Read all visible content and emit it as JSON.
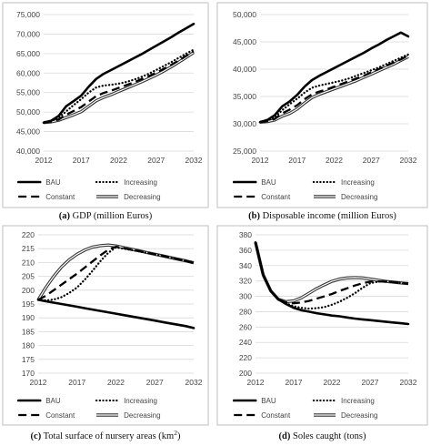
{
  "legend_labels": [
    "BAU",
    "Increasing",
    "Constant",
    "Decreasing"
  ],
  "chart_data": [
    {
      "type": "line",
      "panel": "a",
      "caption_letter": "(a)",
      "caption_text": " GDP (million Euros)",
      "x": [
        2012,
        2013,
        2014,
        2015,
        2016,
        2017,
        2018,
        2019,
        2020,
        2021,
        2022,
        2023,
        2024,
        2025,
        2026,
        2027,
        2028,
        2029,
        2030,
        2031,
        2032
      ],
      "xticks": [
        "2012",
        "2017",
        "2022",
        "2027",
        "2032"
      ],
      "yticks": [
        "40,000",
        "45,000",
        "50,000",
        "55,000",
        "60,000",
        "65,000",
        "70,000",
        "75,000"
      ],
      "ylim": [
        40000,
        75000
      ],
      "grid": true,
      "legend_position": "bottom",
      "series": [
        {
          "name": "BAU",
          "style": "solid",
          "values": [
            47300,
            47800,
            49000,
            51500,
            52800,
            54200,
            56500,
            58500,
            59800,
            60800,
            61800,
            62800,
            63800,
            64800,
            65900,
            67000,
            68100,
            69200,
            70400,
            71500,
            72600
          ]
        },
        {
          "name": "Increasing",
          "style": "dotted",
          "values": [
            47300,
            47700,
            48500,
            50200,
            51800,
            53300,
            55000,
            56300,
            56800,
            57000,
            57300,
            57700,
            58300,
            59000,
            59800,
            60800,
            61800,
            62800,
            63900,
            65000,
            66000
          ]
        },
        {
          "name": "Constant",
          "style": "dashed",
          "values": [
            47300,
            47600,
            48100,
            49300,
            50300,
            51300,
            52700,
            54100,
            54900,
            55500,
            56200,
            56900,
            57600,
            58400,
            59200,
            60100,
            61100,
            62100,
            63200,
            64400,
            65600
          ]
        },
        {
          "name": "Decreasing",
          "style": "double",
          "values": [
            47300,
            47500,
            47900,
            48600,
            49300,
            50100,
            51500,
            52900,
            53800,
            54500,
            55300,
            56100,
            56900,
            57700,
            58600,
            59500,
            60500,
            61600,
            62800,
            64000,
            65300
          ]
        }
      ]
    },
    {
      "type": "line",
      "panel": "b",
      "caption_letter": "(b)",
      "caption_text": " Disposable income (million Euros)",
      "x": [
        2012,
        2013,
        2014,
        2015,
        2016,
        2017,
        2018,
        2019,
        2020,
        2021,
        2022,
        2023,
        2024,
        2025,
        2026,
        2027,
        2028,
        2029,
        2030,
        2031,
        2032
      ],
      "xticks": [
        "2012",
        "2017",
        "2022",
        "2027",
        "2032"
      ],
      "yticks": [
        "25,000",
        "30,000",
        "35,000",
        "40,000",
        "45,000",
        "50,000"
      ],
      "ylim": [
        25000,
        50000
      ],
      "grid": true,
      "legend_position": "bottom",
      "series": [
        {
          "name": "BAU",
          "style": "solid",
          "values": [
            30300,
            30700,
            31600,
            33200,
            34100,
            35300,
            36800,
            38000,
            38800,
            39500,
            40200,
            40900,
            41600,
            42300,
            43000,
            43800,
            44500,
            45300,
            46000,
            46700,
            46000
          ]
        },
        {
          "name": "Increasing",
          "style": "dotted",
          "values": [
            30300,
            30600,
            31200,
            32500,
            33600,
            34600,
            35700,
            36600,
            37000,
            37300,
            37600,
            37900,
            38300,
            38800,
            39300,
            39800,
            40300,
            40900,
            41500,
            42100,
            42700
          ]
        },
        {
          "name": "Constant",
          "style": "dashed",
          "values": [
            30300,
            30500,
            30900,
            31900,
            32600,
            33400,
            34500,
            35400,
            35900,
            36300,
            36800,
            37300,
            37800,
            38300,
            38800,
            39400,
            40000,
            40600,
            41200,
            41800,
            42500
          ]
        },
        {
          "name": "Decreasing",
          "style": "double",
          "values": [
            30300,
            30400,
            30700,
            31400,
            31900,
            32700,
            33800,
            34800,
            35400,
            35900,
            36400,
            36900,
            37400,
            37900,
            38500,
            39100,
            39700,
            40300,
            40900,
            41600,
            42300
          ]
        }
      ]
    },
    {
      "type": "line",
      "panel": "c",
      "caption_letter": "(c)",
      "caption_text": " Total surface of nursery areas (km",
      "caption_sup": "2",
      "caption_end": ")",
      "x": [
        2012,
        2013,
        2014,
        2015,
        2016,
        2017,
        2018,
        2019,
        2020,
        2021,
        2022,
        2023,
        2024,
        2025,
        2026,
        2027,
        2028,
        2029,
        2030,
        2031,
        2032
      ],
      "xticks": [
        "2012",
        "2017",
        "2022",
        "2027",
        "2032"
      ],
      "yticks": [
        "170",
        "175",
        "180",
        "185",
        "190",
        "195",
        "200",
        "205",
        "210",
        "215",
        "220"
      ],
      "ylim": [
        170,
        220
      ],
      "grid": true,
      "legend_position": "bottom",
      "series": [
        {
          "name": "BAU",
          "style": "solid",
          "values": [
            196.5,
            196.0,
            195.5,
            195.0,
            194.5,
            194.0,
            193.5,
            193.0,
            192.5,
            192.0,
            191.5,
            191.0,
            190.5,
            190.0,
            189.5,
            189.0,
            188.5,
            188.0,
            187.5,
            187.0,
            186.3
          ]
        },
        {
          "name": "Increasing",
          "style": "dotted",
          "values": [
            196.5,
            196.3,
            196.6,
            197.5,
            199.0,
            201.0,
            203.8,
            207.0,
            210.5,
            213.5,
            215.5,
            215.0,
            214.5,
            214.0,
            213.5,
            213.0,
            212.4,
            211.8,
            211.2,
            210.6,
            210.0
          ]
        },
        {
          "name": "Constant",
          "style": "dashed",
          "values": [
            196.5,
            198.0,
            200.0,
            202.0,
            204.0,
            206.0,
            208.2,
            210.4,
            212.6,
            214.6,
            215.7,
            215.2,
            214.6,
            214.1,
            213.5,
            213.0,
            212.4,
            211.8,
            211.2,
            210.6,
            209.8
          ]
        },
        {
          "name": "Decreasing",
          "style": "double",
          "values": [
            196.5,
            201.0,
            205.0,
            208.4,
            211.0,
            213.0,
            214.5,
            215.6,
            216.1,
            216.3,
            216.0,
            215.4,
            214.8,
            214.2,
            213.6,
            213.0,
            212.4,
            211.8,
            211.2,
            210.6,
            209.9
          ]
        }
      ]
    },
    {
      "type": "line",
      "panel": "d",
      "caption_letter": "(d)",
      "caption_text": " Soles caught (tons)",
      "x": [
        2012,
        2013,
        2014,
        2015,
        2016,
        2017,
        2018,
        2019,
        2020,
        2021,
        2022,
        2023,
        2024,
        2025,
        2026,
        2027,
        2028,
        2029,
        2030,
        2031,
        2032
      ],
      "xticks": [
        "2012",
        "2017",
        "2022",
        "2027",
        "2032"
      ],
      "yticks": [
        "200",
        "220",
        "240",
        "260",
        "280",
        "300",
        "320",
        "340",
        "360",
        "380"
      ],
      "ylim": [
        200,
        380
      ],
      "grid": true,
      "legend_position": "bottom",
      "series": [
        {
          "name": "BAU",
          "style": "solid",
          "values": [
            370,
            328,
            307,
            296,
            290,
            285,
            282,
            280,
            278,
            276.5,
            275,
            274,
            272.5,
            271,
            270,
            269,
            268,
            267,
            266,
            265,
            264
          ]
        },
        {
          "name": "Increasing",
          "style": "dotted",
          "values": [
            370,
            328,
            307,
            296,
            291,
            287,
            285,
            284,
            284.5,
            286,
            289,
            293,
            298,
            304,
            311,
            317,
            319,
            319.5,
            318.5,
            317.5,
            316
          ]
        },
        {
          "name": "Constant",
          "style": "dashed",
          "values": [
            370,
            328,
            307,
            296,
            292,
            291,
            292,
            294,
            297,
            300,
            303,
            307,
            310.5,
            314,
            317,
            319,
            319.5,
            319,
            318.5,
            317.5,
            316.5
          ]
        },
        {
          "name": "Decreasing",
          "style": "double",
          "values": [
            370,
            328,
            307,
            296,
            293,
            294,
            298,
            304,
            310,
            315,
            319.5,
            322.5,
            324,
            324.5,
            324,
            322.5,
            321,
            319.5,
            318.5,
            317.5,
            316.5
          ]
        }
      ]
    }
  ]
}
